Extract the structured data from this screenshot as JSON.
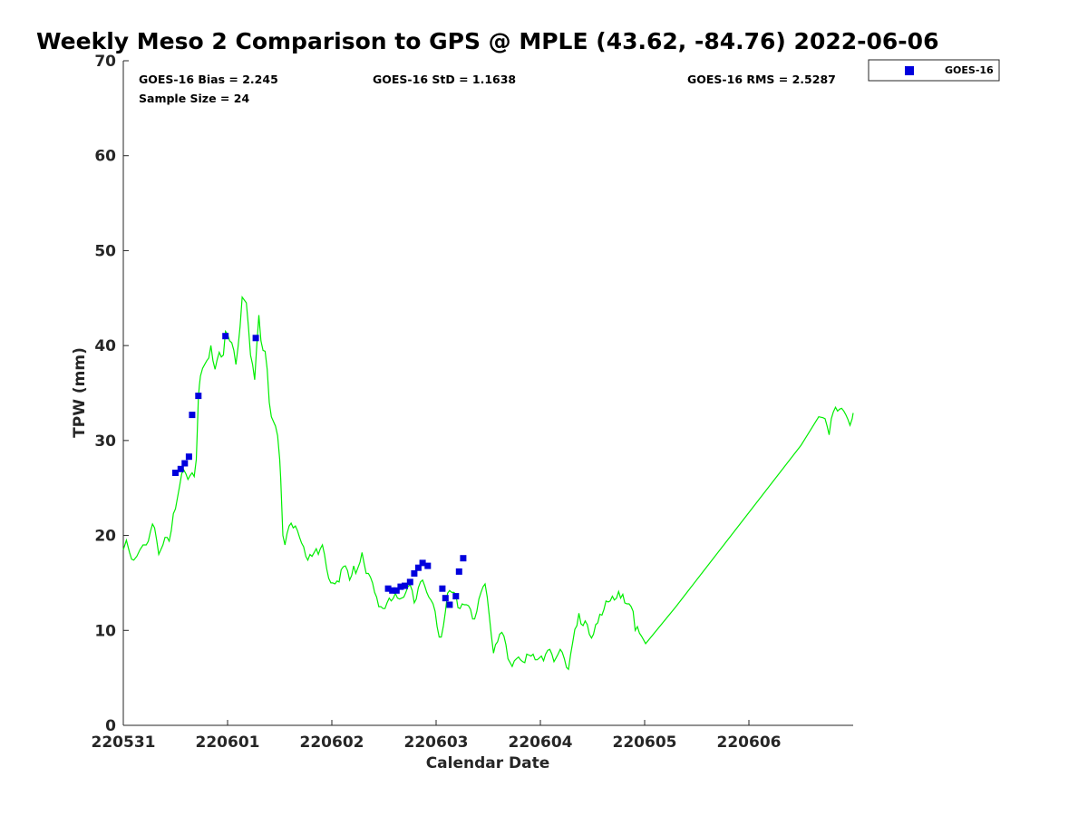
{
  "chart_data": {
    "type": "scatter",
    "title": "Weekly Meso 2 Comparison to GPS @ MPLE (43.62, -84.76) 2022-06-06",
    "xlabel": "Calendar Date",
    "ylabel": "TPW (mm)",
    "xlim": [
      0,
      7
    ],
    "ylim": [
      0,
      70
    ],
    "x_ticks": [
      0,
      1,
      2,
      3,
      4,
      5,
      6
    ],
    "x_tick_labels": [
      "220531",
      "220601",
      "220602",
      "220603",
      "220604",
      "220605",
      "220606"
    ],
    "y_ticks": [
      0,
      10,
      20,
      30,
      40,
      50,
      60,
      70
    ],
    "y_tick_labels": [
      "0",
      "10",
      "20",
      "30",
      "40",
      "50",
      "60",
      "70"
    ],
    "grid": false,
    "legend_position": "top-right, outside plot",
    "stats": {
      "bias": "GOES-16 Bias = 2.245",
      "std": "GOES-16 StD = 1.1638",
      "rms": "GOES-16 RMS = 2.5287",
      "sample_size": "Sample Size = 24"
    },
    "series": [
      {
        "name": "GOES-16",
        "kind": "scatter",
        "marker": "square",
        "color": "#0000dd",
        "points": [
          [
            0.5,
            26.6
          ],
          [
            0.55,
            27.0
          ],
          [
            0.59,
            27.6
          ],
          [
            0.63,
            28.3
          ],
          [
            0.66,
            32.7
          ],
          [
            0.72,
            34.7
          ],
          [
            0.98,
            41.0
          ],
          [
            1.27,
            40.8
          ],
          [
            2.54,
            14.4
          ],
          [
            2.58,
            14.2
          ],
          [
            2.62,
            14.2
          ],
          [
            2.66,
            14.6
          ],
          [
            2.7,
            14.7
          ],
          [
            2.75,
            15.1
          ],
          [
            2.79,
            16.0
          ],
          [
            2.83,
            16.6
          ],
          [
            2.87,
            17.1
          ],
          [
            2.92,
            16.8
          ],
          [
            3.06,
            14.4
          ],
          [
            3.09,
            13.4
          ],
          [
            3.13,
            12.7
          ],
          [
            3.19,
            13.6
          ],
          [
            3.22,
            16.2
          ],
          [
            3.26,
            17.6
          ]
        ]
      },
      {
        "kind": "line",
        "color": "#00ee00",
        "points": [
          [
            0.0,
            18.5
          ],
          [
            0.03,
            19.5
          ],
          [
            0.06,
            18.2
          ],
          [
            0.08,
            17.5
          ],
          [
            0.1,
            17.4
          ],
          [
            0.13,
            17.8
          ],
          [
            0.16,
            18.5
          ],
          [
            0.19,
            19.0
          ],
          [
            0.22,
            19.0
          ],
          [
            0.24,
            19.4
          ],
          [
            0.26,
            20.4
          ],
          [
            0.28,
            21.2
          ],
          [
            0.3,
            20.8
          ],
          [
            0.32,
            19.5
          ],
          [
            0.34,
            18.0
          ],
          [
            0.36,
            18.5
          ],
          [
            0.38,
            19.0
          ],
          [
            0.4,
            19.8
          ],
          [
            0.42,
            19.8
          ],
          [
            0.44,
            19.4
          ],
          [
            0.46,
            20.5
          ],
          [
            0.48,
            22.3
          ],
          [
            0.5,
            22.8
          ],
          [
            0.52,
            24.0
          ],
          [
            0.54,
            25.2
          ],
          [
            0.56,
            26.5
          ],
          [
            0.58,
            26.9
          ],
          [
            0.6,
            26.5
          ],
          [
            0.62,
            25.9
          ],
          [
            0.64,
            26.3
          ],
          [
            0.66,
            26.6
          ],
          [
            0.68,
            26.2
          ],
          [
            0.7,
            28.0
          ],
          [
            0.71,
            31.0
          ],
          [
            0.72,
            34.5
          ],
          [
            0.73,
            35.8
          ],
          [
            0.74,
            36.8
          ],
          [
            0.76,
            37.6
          ],
          [
            0.78,
            38.0
          ],
          [
            0.8,
            38.4
          ],
          [
            0.82,
            38.7
          ],
          [
            0.84,
            40.0
          ],
          [
            0.86,
            38.4
          ],
          [
            0.88,
            37.5
          ],
          [
            0.9,
            38.5
          ],
          [
            0.92,
            39.3
          ],
          [
            0.94,
            38.8
          ],
          [
            0.96,
            39.0
          ],
          [
            0.98,
            41.5
          ],
          [
            1.0,
            41.2
          ],
          [
            1.02,
            40.5
          ],
          [
            1.04,
            40.3
          ],
          [
            1.06,
            39.5
          ],
          [
            1.08,
            38.0
          ],
          [
            1.1,
            39.8
          ],
          [
            1.12,
            42.0
          ],
          [
            1.14,
            45.1
          ],
          [
            1.16,
            44.8
          ],
          [
            1.18,
            44.5
          ],
          [
            1.2,
            42.0
          ],
          [
            1.22,
            39.0
          ],
          [
            1.24,
            38.0
          ],
          [
            1.26,
            36.4
          ],
          [
            1.28,
            40.0
          ],
          [
            1.3,
            43.2
          ],
          [
            1.32,
            40.5
          ],
          [
            1.34,
            39.5
          ],
          [
            1.36,
            39.4
          ],
          [
            1.38,
            37.5
          ],
          [
            1.4,
            34.0
          ],
          [
            1.42,
            32.5
          ],
          [
            1.44,
            32.0
          ],
          [
            1.46,
            31.5
          ],
          [
            1.48,
            30.5
          ],
          [
            1.5,
            28.0
          ],
          [
            1.51,
            26.0
          ],
          [
            1.52,
            23.0
          ],
          [
            1.53,
            20.0
          ],
          [
            1.55,
            19.0
          ],
          [
            1.57,
            20.2
          ],
          [
            1.59,
            21.0
          ],
          [
            1.61,
            21.3
          ],
          [
            1.63,
            20.8
          ],
          [
            1.65,
            21.0
          ],
          [
            1.67,
            20.5
          ],
          [
            1.69,
            19.8
          ],
          [
            1.71,
            19.2
          ],
          [
            1.73,
            18.8
          ],
          [
            1.75,
            17.8
          ],
          [
            1.77,
            17.4
          ],
          [
            1.79,
            18.0
          ],
          [
            1.81,
            17.8
          ],
          [
            1.83,
            18.2
          ],
          [
            1.85,
            18.6
          ],
          [
            1.87,
            18.0
          ],
          [
            1.89,
            18.6
          ],
          [
            1.91,
            19.0
          ],
          [
            1.93,
            18.0
          ],
          [
            1.95,
            16.5
          ],
          [
            1.97,
            15.5
          ],
          [
            1.99,
            15.0
          ],
          [
            2.01,
            15.0
          ],
          [
            2.03,
            14.9
          ],
          [
            2.05,
            15.2
          ],
          [
            2.07,
            15.1
          ],
          [
            2.09,
            16.4
          ],
          [
            2.11,
            16.7
          ],
          [
            2.13,
            16.8
          ],
          [
            2.15,
            16.3
          ],
          [
            2.17,
            15.3
          ],
          [
            2.19,
            15.8
          ],
          [
            2.21,
            16.8
          ],
          [
            2.23,
            16.0
          ],
          [
            2.25,
            16.6
          ],
          [
            2.27,
            17.2
          ],
          [
            2.29,
            18.2
          ],
          [
            2.31,
            17.0
          ],
          [
            2.33,
            16.0
          ],
          [
            2.35,
            16.0
          ],
          [
            2.37,
            15.6
          ],
          [
            2.39,
            15.0
          ],
          [
            2.41,
            14.0
          ],
          [
            2.43,
            13.5
          ],
          [
            2.45,
            12.5
          ],
          [
            2.47,
            12.5
          ],
          [
            2.49,
            12.3
          ],
          [
            2.51,
            12.3
          ],
          [
            2.53,
            12.9
          ],
          [
            2.55,
            13.4
          ],
          [
            2.57,
            13.1
          ],
          [
            2.59,
            13.4
          ],
          [
            2.61,
            13.9
          ],
          [
            2.63,
            13.4
          ],
          [
            2.65,
            13.3
          ],
          [
            2.67,
            13.4
          ],
          [
            2.69,
            13.5
          ],
          [
            2.71,
            14.0
          ],
          [
            2.73,
            14.6
          ],
          [
            2.75,
            14.8
          ],
          [
            2.77,
            14.2
          ],
          [
            2.79,
            12.9
          ],
          [
            2.81,
            13.3
          ],
          [
            2.83,
            14.5
          ],
          [
            2.85,
            15.1
          ],
          [
            2.87,
            15.3
          ],
          [
            2.89,
            14.7
          ],
          [
            2.91,
            14.0
          ],
          [
            2.93,
            13.5
          ],
          [
            2.95,
            13.2
          ],
          [
            2.97,
            12.8
          ],
          [
            2.99,
            12.0
          ],
          [
            3.01,
            10.4
          ],
          [
            3.03,
            9.3
          ],
          [
            3.05,
            9.3
          ],
          [
            3.07,
            10.5
          ],
          [
            3.09,
            12.0
          ],
          [
            3.11,
            13.9
          ],
          [
            3.13,
            14.2
          ],
          [
            3.15,
            14.0
          ],
          [
            3.17,
            14.0
          ],
          [
            3.19,
            13.8
          ],
          [
            3.21,
            12.4
          ],
          [
            3.23,
            12.3
          ],
          [
            3.25,
            12.8
          ],
          [
            3.27,
            12.7
          ],
          [
            3.29,
            12.7
          ],
          [
            3.31,
            12.6
          ],
          [
            3.33,
            12.2
          ],
          [
            3.35,
            11.2
          ],
          [
            3.37,
            11.2
          ],
          [
            3.39,
            12.0
          ],
          [
            3.41,
            13.3
          ],
          [
            3.43,
            14.0
          ],
          [
            3.45,
            14.6
          ],
          [
            3.47,
            14.9
          ],
          [
            3.49,
            13.5
          ],
          [
            3.51,
            11.5
          ],
          [
            3.53,
            9.5
          ],
          [
            3.55,
            7.6
          ],
          [
            3.57,
            8.5
          ],
          [
            3.59,
            8.8
          ],
          [
            3.61,
            9.6
          ],
          [
            3.63,
            9.8
          ],
          [
            3.65,
            9.4
          ],
          [
            3.67,
            8.5
          ],
          [
            3.69,
            7.0
          ],
          [
            3.71,
            6.6
          ],
          [
            3.73,
            6.2
          ],
          [
            3.75,
            6.8
          ],
          [
            3.77,
            7.0
          ],
          [
            3.79,
            7.2
          ],
          [
            3.81,
            6.9
          ],
          [
            3.83,
            6.7
          ],
          [
            3.85,
            6.6
          ],
          [
            3.87,
            7.5
          ],
          [
            3.89,
            7.4
          ],
          [
            3.91,
            7.3
          ],
          [
            3.93,
            7.5
          ],
          [
            3.95,
            6.9
          ],
          [
            3.97,
            6.9
          ],
          [
            3.99,
            7.1
          ],
          [
            4.01,
            7.3
          ],
          [
            4.03,
            6.8
          ],
          [
            4.05,
            7.5
          ],
          [
            4.07,
            7.9
          ],
          [
            4.09,
            8.0
          ],
          [
            4.11,
            7.5
          ],
          [
            4.13,
            6.7
          ],
          [
            4.15,
            7.1
          ],
          [
            4.17,
            7.5
          ],
          [
            4.19,
            8.0
          ],
          [
            4.21,
            7.7
          ],
          [
            4.23,
            7.0
          ],
          [
            4.25,
            6.1
          ],
          [
            4.27,
            5.9
          ],
          [
            4.29,
            7.5
          ],
          [
            4.31,
            8.7
          ],
          [
            4.33,
            10.1
          ],
          [
            4.35,
            10.5
          ],
          [
            4.37,
            11.8
          ],
          [
            4.39,
            10.7
          ],
          [
            4.41,
            10.5
          ],
          [
            4.43,
            11.0
          ],
          [
            4.45,
            10.6
          ],
          [
            4.47,
            9.6
          ],
          [
            4.49,
            9.2
          ],
          [
            4.51,
            9.6
          ],
          [
            4.53,
            10.6
          ],
          [
            4.55,
            10.8
          ],
          [
            4.57,
            11.7
          ],
          [
            4.59,
            11.6
          ],
          [
            4.61,
            12.2
          ],
          [
            4.63,
            13.1
          ],
          [
            4.65,
            13.0
          ],
          [
            4.67,
            13.1
          ],
          [
            4.69,
            13.6
          ],
          [
            4.71,
            13.2
          ],
          [
            4.73,
            13.4
          ],
          [
            4.75,
            14.1
          ],
          [
            4.77,
            13.4
          ],
          [
            4.79,
            13.8
          ],
          [
            4.81,
            12.9
          ],
          [
            4.83,
            12.8
          ],
          [
            4.85,
            12.8
          ],
          [
            4.87,
            12.5
          ],
          [
            4.89,
            12.0
          ],
          [
            4.91,
            10.0
          ],
          [
            4.93,
            10.4
          ],
          [
            4.95,
            9.7
          ],
          [
            4.97,
            9.4
          ],
          [
            4.99,
            9.0
          ],
          [
            5.01,
            8.6
          ],
          [
            5.3,
            12.5
          ],
          [
            5.9,
            21.0
          ],
          [
            6.5,
            29.5
          ],
          [
            6.67,
            32.5
          ],
          [
            6.71,
            32.4
          ],
          [
            6.73,
            32.3
          ],
          [
            6.75,
            31.5
          ],
          [
            6.77,
            30.6
          ],
          [
            6.79,
            32.3
          ],
          [
            6.81,
            33.0
          ],
          [
            6.83,
            33.5
          ],
          [
            6.85,
            33.1
          ],
          [
            6.87,
            33.3
          ],
          [
            6.89,
            33.4
          ],
          [
            6.91,
            33.1
          ],
          [
            6.93,
            32.7
          ],
          [
            6.95,
            32.2
          ],
          [
            6.97,
            31.6
          ],
          [
            6.99,
            32.3
          ],
          [
            7.0,
            32.9
          ]
        ]
      }
    ]
  }
}
